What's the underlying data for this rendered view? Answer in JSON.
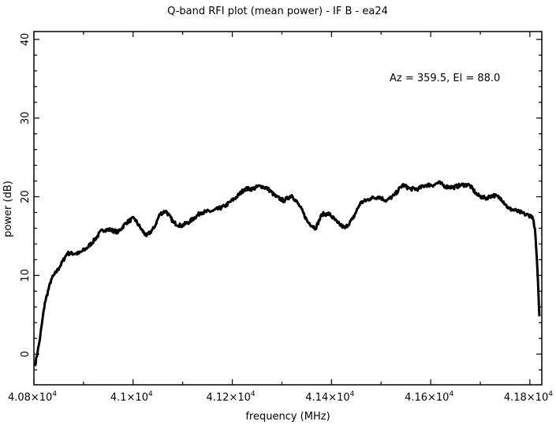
{
  "chart_data": {
    "type": "line",
    "title": "Q-band RFI plot (mean power) - IF B - ea24",
    "xlabel": "frequency (MHz)",
    "ylabel": "power (dB)",
    "annotation": "Az = 359.5, El = 88.0",
    "xlim": [
      40800,
      41824
    ],
    "ylim": [
      -3.9,
      41
    ],
    "x_ticks": [
      40800,
      41000,
      41200,
      41400,
      41600,
      41800
    ],
    "x_tick_labels": [
      {
        "mantissa": "4.08×10",
        "exp": "4"
      },
      {
        "mantissa": "4.1×10",
        "exp": "4"
      },
      {
        "mantissa": "4.12×10",
        "exp": "4"
      },
      {
        "mantissa": "4.14×10",
        "exp": "4"
      },
      {
        "mantissa": "4.16×10",
        "exp": "4"
      },
      {
        "mantissa": "4.18×10",
        "exp": "4"
      }
    ],
    "y_ticks": [
      0,
      10,
      20,
      30,
      40
    ],
    "y_tick_labels": [
      "0",
      "10",
      "20",
      "30",
      "40"
    ],
    "grid": false,
    "series": [
      {
        "name": "mean power",
        "color": "#000000",
        "x": [
          40802,
          40811,
          40822,
          40835,
          40851,
          40867,
          40891,
          40907,
          40922,
          40938,
          40954,
          40970,
          40986,
          41002,
          41015,
          41027,
          41042,
          41054,
          41066,
          41082,
          41097,
          41113,
          41137,
          41161,
          41185,
          41209,
          41225,
          41241,
          41257,
          41272,
          41288,
          41304,
          41320,
          41336,
          41352,
          41368,
          41381,
          41396,
          41412,
          41427,
          41443,
          41458,
          41479,
          41495,
          41511,
          41527,
          41543,
          41559,
          41575,
          41590,
          41606,
          41616,
          41630,
          41646,
          41662,
          41678,
          41694,
          41710,
          41726,
          41742,
          41757,
          41773,
          41789,
          41805,
          41810,
          41815,
          41819
        ],
        "y": [
          -1.5,
          1.5,
          6.5,
          9.5,
          11,
          12.8,
          12.8,
          13.5,
          14.5,
          15.8,
          15.8,
          15.5,
          16.7,
          17.3,
          16,
          15,
          16,
          17.8,
          18.2,
          16.7,
          16.3,
          16.8,
          18,
          18.2,
          18.8,
          20,
          21,
          21,
          21.4,
          21,
          20,
          19.5,
          20.2,
          18.8,
          16.8,
          16,
          17.8,
          17.8,
          16.7,
          16,
          17.2,
          19.2,
          19.8,
          20,
          19.5,
          20.2,
          21.5,
          21,
          21,
          21.5,
          21.5,
          21.8,
          21.3,
          21.2,
          21.5,
          21.5,
          20.2,
          19.8,
          20.2,
          19.8,
          18.5,
          18.2,
          17.8,
          17.5,
          16,
          11,
          4.8
        ]
      }
    ]
  }
}
